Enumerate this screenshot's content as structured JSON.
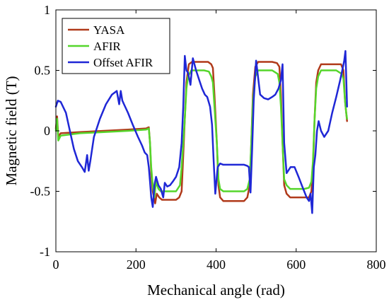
{
  "chart_data": {
    "type": "line",
    "title": "",
    "xlabel": "Mechanical angle (rad)",
    "ylabel": "Magnetic field (T)",
    "xlim": [
      0,
      800
    ],
    "ylim": [
      -1,
      1
    ],
    "xticks": [
      "0",
      "200",
      "400",
      "600",
      "800"
    ],
    "yticks": [
      "1",
      "0.5",
      "0",
      "-0.5",
      "-1"
    ],
    "grid": false,
    "legend_position": "top-left",
    "series": [
      {
        "name": "YASA",
        "color": "#b03a1a",
        "x": [
          0,
          3,
          6,
          12,
          60,
          120,
          180,
          225,
          232,
          235,
          238,
          242,
          248,
          252,
          258,
          265,
          280,
          300,
          308,
          314,
          318,
          322,
          326,
          332,
          340,
          352,
          370,
          380,
          388,
          392,
          396,
          402,
          406,
          410,
          418,
          440,
          470,
          478,
          484,
          488,
          492,
          498,
          505,
          520,
          540,
          552,
          558,
          562,
          566,
          570,
          576,
          585,
          600,
          620,
          632,
          638,
          642,
          646,
          650,
          655,
          662,
          680,
          700,
          712,
          718,
          722,
          725,
          727
        ],
        "y": [
          0.02,
          0.12,
          -0.05,
          -0.02,
          -0.01,
          0.0,
          0.01,
          0.02,
          0.03,
          -0.1,
          -0.35,
          -0.5,
          -0.6,
          -0.52,
          -0.55,
          -0.57,
          -0.57,
          -0.57,
          -0.55,
          -0.5,
          -0.2,
          0.1,
          0.4,
          0.55,
          0.57,
          0.57,
          0.57,
          0.57,
          0.55,
          0.52,
          0.3,
          -0.1,
          -0.45,
          -0.55,
          -0.58,
          -0.58,
          -0.58,
          -0.55,
          -0.45,
          -0.1,
          0.3,
          0.53,
          0.57,
          0.57,
          0.57,
          0.56,
          0.53,
          0.3,
          -0.1,
          -0.45,
          -0.52,
          -0.55,
          -0.55,
          -0.55,
          -0.55,
          -0.5,
          -0.3,
          0.1,
          0.4,
          0.5,
          0.55,
          0.55,
          0.55,
          0.55,
          0.5,
          0.25,
          0.15,
          0.08
        ]
      },
      {
        "name": "AFIR",
        "color": "#55d62b",
        "x": [
          0,
          3,
          6,
          12,
          60,
          120,
          180,
          225,
          232,
          235,
          238,
          242,
          246,
          250,
          256,
          262,
          280,
          300,
          310,
          314,
          318,
          322,
          326,
          330,
          338,
          352,
          370,
          382,
          388,
          392,
          396,
          402,
          406,
          410,
          418,
          440,
          470,
          478,
          484,
          488,
          492,
          498,
          505,
          520,
          540,
          554,
          558,
          562,
          566,
          570,
          576,
          585,
          600,
          620,
          632,
          638,
          642,
          646,
          650,
          655,
          662,
          680,
          700,
          714,
          718,
          722,
          725,
          727
        ],
        "y": [
          0.0,
          0.1,
          -0.08,
          -0.04,
          -0.02,
          -0.01,
          0.0,
          0.01,
          0.02,
          -0.1,
          -0.3,
          -0.45,
          -0.55,
          -0.42,
          -0.48,
          -0.5,
          -0.5,
          -0.5,
          -0.45,
          -0.3,
          -0.1,
          0.1,
          0.35,
          0.45,
          0.5,
          0.5,
          0.5,
          0.49,
          0.45,
          0.4,
          0.2,
          -0.1,
          -0.4,
          -0.48,
          -0.5,
          -0.5,
          -0.5,
          -0.48,
          -0.4,
          -0.1,
          0.25,
          0.45,
          0.5,
          0.5,
          0.5,
          0.47,
          0.4,
          0.2,
          -0.1,
          -0.4,
          -0.45,
          -0.48,
          -0.48,
          -0.48,
          -0.47,
          -0.42,
          -0.25,
          0.1,
          0.35,
          0.45,
          0.5,
          0.5,
          0.5,
          0.47,
          0.43,
          0.25,
          0.15,
          0.1
        ]
      },
      {
        "name": "Offset AFIR",
        "color": "#1f27d6",
        "x": [
          0,
          5,
          12,
          25,
          35,
          45,
          55,
          65,
          72,
          78,
          82,
          86,
          95,
          110,
          125,
          140,
          152,
          158,
          162,
          166,
          170,
          180,
          192,
          205,
          215,
          222,
          228,
          232,
          235,
          238,
          242,
          246,
          250,
          256,
          262,
          268,
          272,
          278,
          285,
          292,
          300,
          308,
          314,
          318,
          322,
          326,
          330,
          336,
          342,
          350,
          358,
          365,
          372,
          378,
          385,
          390,
          394,
          398,
          404,
          410,
          418,
          428,
          440,
          455,
          470,
          478,
          482,
          486,
          490,
          494,
          500,
          510,
          520,
          530,
          540,
          548,
          556,
          562,
          566,
          570,
          576,
          586,
          596,
          606,
          614,
          620,
          626,
          632,
          636,
          640,
          644,
          648,
          652,
          656,
          662,
          670,
          680,
          690,
          700,
          710,
          715,
          720,
          723,
          725,
          727
        ],
        "y": [
          0.2,
          0.25,
          0.24,
          0.15,
          0.0,
          -0.15,
          -0.25,
          -0.3,
          -0.34,
          -0.2,
          -0.33,
          -0.25,
          -0.05,
          0.1,
          0.22,
          0.3,
          0.33,
          0.22,
          0.33,
          0.25,
          0.22,
          0.15,
          0.05,
          -0.05,
          -0.12,
          -0.18,
          -0.2,
          -0.3,
          -0.42,
          -0.55,
          -0.63,
          -0.45,
          -0.38,
          -0.45,
          -0.48,
          -0.55,
          -0.43,
          -0.46,
          -0.45,
          -0.42,
          -0.38,
          -0.3,
          -0.1,
          0.2,
          0.62,
          0.5,
          0.48,
          0.38,
          0.6,
          0.5,
          0.42,
          0.35,
          0.3,
          0.28,
          0.2,
          0.05,
          -0.25,
          -0.52,
          -0.3,
          -0.27,
          -0.28,
          -0.28,
          -0.28,
          -0.28,
          -0.28,
          -0.29,
          -0.3,
          -0.51,
          -0.15,
          0.25,
          0.58,
          0.3,
          0.27,
          0.26,
          0.28,
          0.3,
          0.35,
          0.42,
          0.55,
          -0.1,
          -0.35,
          -0.3,
          -0.3,
          -0.38,
          -0.45,
          -0.5,
          -0.55,
          -0.58,
          -0.52,
          -0.68,
          -0.3,
          -0.2,
          0.0,
          0.08,
          0.0,
          -0.05,
          0.0,
          0.15,
          0.28,
          0.42,
          0.5,
          0.58,
          0.66,
          0.45,
          0.2
        ]
      }
    ]
  }
}
